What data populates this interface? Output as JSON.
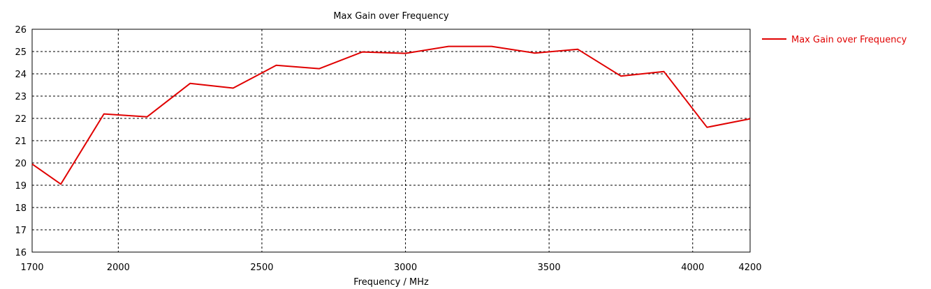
{
  "chart_data": {
    "type": "line",
    "title": "Max Gain over Frequency",
    "xlabel": "Frequency / MHz",
    "ylabel": "",
    "xlim": [
      1700,
      4200
    ],
    "ylim": [
      16,
      26
    ],
    "x_ticks": [
      1700,
      2000,
      2500,
      3000,
      3500,
      4000,
      4200
    ],
    "y_ticks": [
      16,
      17,
      18,
      19,
      20,
      21,
      22,
      23,
      24,
      25,
      26
    ],
    "grid": true,
    "legend": "top-right",
    "series": [
      {
        "name": "Max Gain over Frequency",
        "color": "#e00000",
        "x": [
          1700,
          1800,
          1950,
          2100,
          2250,
          2400,
          2550,
          2700,
          2850,
          3000,
          3150,
          3300,
          3450,
          3600,
          3750,
          3900,
          4050,
          4200
        ],
        "y": [
          19.95,
          19.05,
          22.2,
          22.07,
          23.57,
          23.36,
          24.38,
          24.23,
          24.98,
          24.92,
          25.23,
          25.23,
          24.93,
          25.1,
          23.9,
          24.1,
          21.6,
          21.98
        ]
      }
    ]
  }
}
